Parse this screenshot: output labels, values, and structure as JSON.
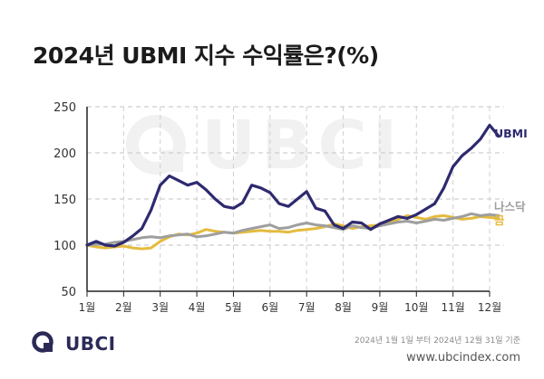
{
  "title": "2024년 UBMI 지수 수익률은?(%)",
  "footer": {
    "logo_text": "UBCI",
    "basis": "2024년 1월 1일 부터 2024년 12월 31일 기준",
    "url": "www.ubcindex.com"
  },
  "watermark": "UBCI",
  "colors": {
    "ubmi": "#2e2a6f",
    "nasdaq": "#9e9e9e",
    "gold": "#e5bb3e",
    "grid": "#cfcfcf"
  },
  "chart_data": {
    "type": "line",
    "xlabel": "",
    "ylabel": "",
    "ylim": [
      50,
      250
    ],
    "yticks": [
      50,
      100,
      150,
      200,
      250
    ],
    "xticks": [
      "1월",
      "2월",
      "3월",
      "4월",
      "5월",
      "6월",
      "7월",
      "8월",
      "9월",
      "10월",
      "11월",
      "12월"
    ],
    "grid": "dashed-horizontal",
    "x": [
      0,
      0.25,
      0.5,
      0.75,
      1,
      1.25,
      1.5,
      1.75,
      2,
      2.25,
      2.5,
      2.75,
      3,
      3.25,
      3.5,
      3.75,
      4,
      4.25,
      4.5,
      4.75,
      5,
      5.25,
      5.5,
      5.75,
      6,
      6.25,
      6.5,
      6.75,
      7,
      7.25,
      7.5,
      7.75,
      8,
      8.25,
      8.5,
      8.75,
      9,
      9.25,
      9.5,
      9.75,
      10,
      10.25,
      10.5,
      10.75,
      11,
      11.25
    ],
    "series": [
      {
        "name": "UBMI",
        "values": [
          100,
          104,
          100,
          99,
          103,
          110,
          118,
          138,
          165,
          175,
          170,
          165,
          168,
          160,
          150,
          142,
          140,
          146,
          165,
          162,
          157,
          145,
          142,
          150,
          158,
          140,
          137,
          122,
          118,
          125,
          124,
          117,
          123,
          127,
          131,
          129,
          133,
          139,
          145,
          162,
          185,
          197,
          205,
          215,
          230,
          218
        ]
      },
      {
        "name": "나스닥",
        "values": [
          100,
          101,
          101,
          103,
          104,
          106,
          108,
          109,
          108,
          110,
          111,
          112,
          109,
          110,
          112,
          114,
          113,
          116,
          118,
          120,
          122,
          118,
          119,
          122,
          124,
          122,
          121,
          119,
          117,
          121,
          119,
          118,
          121,
          123,
          125,
          126,
          124,
          126,
          128,
          127,
          129,
          131,
          134,
          132,
          133,
          132
        ]
      },
      {
        "name": "금",
        "values": [
          100,
          98,
          97,
          98,
          99,
          97,
          96,
          97,
          104,
          109,
          112,
          111,
          113,
          117,
          115,
          114,
          113,
          114,
          115,
          116,
          115,
          115,
          114,
          116,
          117,
          118,
          120,
          123,
          121,
          118,
          120,
          121,
          122,
          125,
          128,
          132,
          130,
          128,
          131,
          132,
          130,
          128,
          129,
          131,
          130,
          129
        ]
      }
    ]
  }
}
